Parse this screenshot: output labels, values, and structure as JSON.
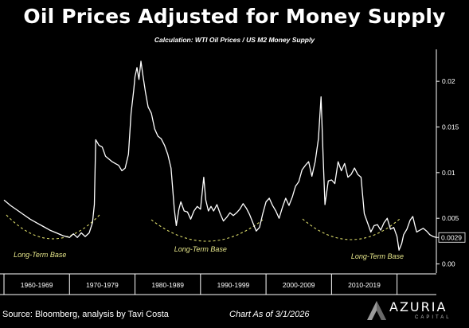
{
  "title": "Oil Prices Adjusted for Money Supply",
  "subtitle": "Calculation: WTI Oil Prices / US M2 Money Supply",
  "footer": {
    "source": "Source: Bloomberg, analysis by Tavi Costa",
    "as_of": "Chart As of 3/1/2026"
  },
  "logo": {
    "name": "AZURIA",
    "tagline": "CAPITAL"
  },
  "colors": {
    "background": "#000000",
    "line": "#ffffff",
    "base_arc": "#d9d96a",
    "base_label": "#e6e68a"
  },
  "chart_data": {
    "type": "line",
    "title": "Oil Prices Adjusted for Money Supply",
    "subtitle": "Calculation: WTI Oil Prices / US M2 Money Supply",
    "xlabel": "",
    "ylabel": "",
    "x_range": [
      1960,
      2026
    ],
    "ylim": [
      -0.001,
      0.0235
    ],
    "y_axis_position": "right",
    "y_ticks": [
      0,
      0.005,
      0.01,
      0.015,
      0.02
    ],
    "y_tick_labels": [
      "0.00",
      "0.005",
      "0.01",
      "0.015",
      "0.02"
    ],
    "last_value_label": "0.0029",
    "last_value": 0.0029,
    "decade_labels": [
      "1960-1969",
      "1970-1979",
      "1980-1989",
      "1990-1999",
      "2000-2009",
      "2010-2019"
    ],
    "decade_starts": [
      1960,
      1970,
      1980,
      1990,
      2000,
      2010
    ],
    "grid": false,
    "legend": "none",
    "series": [
      {
        "points": [
          [
            1960.0,
            0.007
          ],
          [
            1961.0,
            0.0064
          ],
          [
            1962.0,
            0.0059
          ],
          [
            1963.0,
            0.0054
          ],
          [
            1964.0,
            0.0049
          ],
          [
            1965.0,
            0.0045
          ],
          [
            1966.0,
            0.0041
          ],
          [
            1967.0,
            0.0037
          ],
          [
            1968.0,
            0.0034
          ],
          [
            1969.0,
            0.0031
          ],
          [
            1970.0,
            0.0029
          ],
          [
            1970.6,
            0.0033
          ],
          [
            1971.2,
            0.0029
          ],
          [
            1971.8,
            0.0034
          ],
          [
            1972.4,
            0.003
          ],
          [
            1973.0,
            0.0034
          ],
          [
            1973.5,
            0.0045
          ],
          [
            1973.8,
            0.0065
          ],
          [
            1974.0,
            0.0136
          ],
          [
            1974.5,
            0.013
          ],
          [
            1975.0,
            0.0128
          ],
          [
            1975.5,
            0.0118
          ],
          [
            1976.0,
            0.0115
          ],
          [
            1976.5,
            0.0112
          ],
          [
            1977.0,
            0.011
          ],
          [
            1977.5,
            0.0108
          ],
          [
            1978.0,
            0.0102
          ],
          [
            1978.5,
            0.0105
          ],
          [
            1979.0,
            0.012
          ],
          [
            1979.4,
            0.0165
          ],
          [
            1979.8,
            0.019
          ],
          [
            1980.0,
            0.0205
          ],
          [
            1980.3,
            0.0215
          ],
          [
            1980.6,
            0.0202
          ],
          [
            1980.9,
            0.0222
          ],
          [
            1981.2,
            0.0207
          ],
          [
            1981.6,
            0.0188
          ],
          [
            1982.0,
            0.0172
          ],
          [
            1982.5,
            0.0165
          ],
          [
            1983.0,
            0.0148
          ],
          [
            1983.5,
            0.014
          ],
          [
            1984.0,
            0.0137
          ],
          [
            1984.5,
            0.013
          ],
          [
            1985.0,
            0.012
          ],
          [
            1985.5,
            0.0105
          ],
          [
            1986.0,
            0.006
          ],
          [
            1986.3,
            0.0042
          ],
          [
            1986.7,
            0.006
          ],
          [
            1987.0,
            0.0068
          ],
          [
            1987.5,
            0.0058
          ],
          [
            1988.0,
            0.0057
          ],
          [
            1988.5,
            0.0049
          ],
          [
            1989.0,
            0.0058
          ],
          [
            1989.5,
            0.0063
          ],
          [
            1990.0,
            0.006
          ],
          [
            1990.5,
            0.0095
          ],
          [
            1990.8,
            0.007
          ],
          [
            1991.2,
            0.0058
          ],
          [
            1991.6,
            0.0063
          ],
          [
            1992.0,
            0.0058
          ],
          [
            1992.5,
            0.0065
          ],
          [
            1993.0,
            0.0055
          ],
          [
            1993.5,
            0.0047
          ],
          [
            1994.0,
            0.0051
          ],
          [
            1994.5,
            0.0056
          ],
          [
            1995.0,
            0.0053
          ],
          [
            1995.5,
            0.0056
          ],
          [
            1996.0,
            0.006
          ],
          [
            1996.5,
            0.0066
          ],
          [
            1997.0,
            0.0061
          ],
          [
            1997.5,
            0.0054
          ],
          [
            1998.0,
            0.0045
          ],
          [
            1998.5,
            0.0036
          ],
          [
            1999.0,
            0.004
          ],
          [
            1999.5,
            0.0055
          ],
          [
            2000.0,
            0.0068
          ],
          [
            2000.5,
            0.0072
          ],
          [
            2001.0,
            0.0064
          ],
          [
            2001.5,
            0.0058
          ],
          [
            2002.0,
            0.005
          ],
          [
            2002.5,
            0.0062
          ],
          [
            2003.0,
            0.0072
          ],
          [
            2003.5,
            0.0064
          ],
          [
            2004.0,
            0.0073
          ],
          [
            2004.5,
            0.0085
          ],
          [
            2005.0,
            0.009
          ],
          [
            2005.5,
            0.0103
          ],
          [
            2006.0,
            0.0108
          ],
          [
            2006.5,
            0.0112
          ],
          [
            2007.0,
            0.0096
          ],
          [
            2007.5,
            0.0112
          ],
          [
            2008.0,
            0.0137
          ],
          [
            2008.4,
            0.0183
          ],
          [
            2008.7,
            0.012
          ],
          [
            2009.0,
            0.0065
          ],
          [
            2009.5,
            0.0091
          ],
          [
            2010.0,
            0.0092
          ],
          [
            2010.5,
            0.0088
          ],
          [
            2011.0,
            0.0112
          ],
          [
            2011.5,
            0.0102
          ],
          [
            2012.0,
            0.011
          ],
          [
            2012.5,
            0.0095
          ],
          [
            2013.0,
            0.0098
          ],
          [
            2013.5,
            0.0105
          ],
          [
            2014.0,
            0.0098
          ],
          [
            2014.5,
            0.0095
          ],
          [
            2015.0,
            0.0055
          ],
          [
            2015.5,
            0.0045
          ],
          [
            2016.0,
            0.0035
          ],
          [
            2016.5,
            0.0042
          ],
          [
            2017.0,
            0.0043
          ],
          [
            2017.5,
            0.0037
          ],
          [
            2018.0,
            0.0045
          ],
          [
            2018.5,
            0.005
          ],
          [
            2019.0,
            0.0038
          ],
          [
            2019.5,
            0.004
          ],
          [
            2020.0,
            0.003
          ],
          [
            2020.3,
            0.0015
          ],
          [
            2020.7,
            0.0022
          ],
          [
            2021.0,
            0.0032
          ],
          [
            2021.5,
            0.0038
          ],
          [
            2022.0,
            0.0048
          ],
          [
            2022.4,
            0.0052
          ],
          [
            2022.8,
            0.004
          ],
          [
            2023.0,
            0.0035
          ],
          [
            2023.5,
            0.0037
          ],
          [
            2024.0,
            0.0039
          ],
          [
            2024.5,
            0.0036
          ],
          [
            2025.0,
            0.0032
          ],
          [
            2025.5,
            0.003
          ],
          [
            2026.0,
            0.0029
          ]
        ]
      }
    ],
    "annotations": [
      {
        "text": "Long-Term Base",
        "x": 1965.5
      },
      {
        "text": "Long-Term Base",
        "x": 1990.0
      },
      {
        "text": "Long-Term Base",
        "x": 2017.0
      }
    ]
  }
}
